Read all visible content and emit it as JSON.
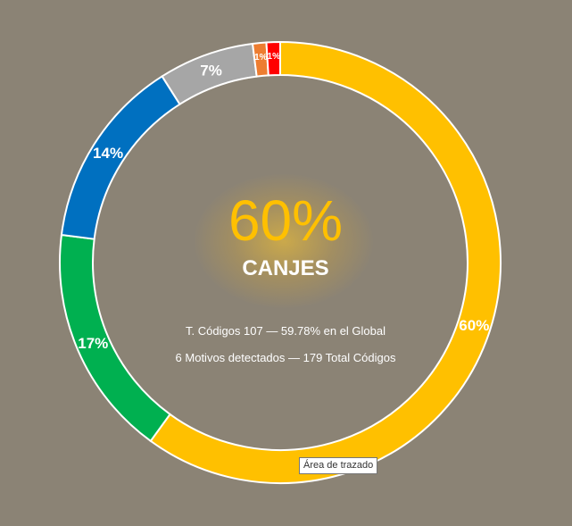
{
  "chart_data": {
    "type": "pie",
    "variant": "donut",
    "direction": "clockwise",
    "start": "top",
    "slices": [
      {
        "value": 60,
        "label": "60%",
        "color": "#ffc000"
      },
      {
        "value": 17,
        "label": "17%",
        "color": "#00b050"
      },
      {
        "value": 14,
        "label": "14%",
        "color": "#0070c0"
      },
      {
        "value": 7,
        "label": "7%",
        "color": "#a6a6a6"
      },
      {
        "value": 1,
        "label": "1%",
        "color": "#ed7d31"
      },
      {
        "value": 1,
        "label": "1%",
        "color": "#ff0000"
      }
    ],
    "center": {
      "percent": "60%",
      "category": "CANJES",
      "stat_line_1": "T. Códigos 107 — 59.78% en el Global",
      "stat_line_2": "6 Motivos detectados — 179 Total Códigos"
    },
    "tooltip": "Área de trazado"
  },
  "colors": {
    "background": "#8b8375",
    "slice_border": "#ffffff",
    "center_percent": "#ffc000"
  }
}
